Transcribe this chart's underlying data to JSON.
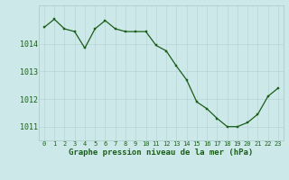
{
  "x": [
    0,
    1,
    2,
    3,
    4,
    5,
    6,
    7,
    8,
    9,
    10,
    11,
    12,
    13,
    14,
    15,
    16,
    17,
    18,
    19,
    20,
    21,
    22,
    23
  ],
  "y": [
    1014.6,
    1014.9,
    1014.55,
    1014.45,
    1013.85,
    1014.55,
    1014.85,
    1014.55,
    1014.45,
    1014.45,
    1014.45,
    1013.95,
    1013.75,
    1013.2,
    1012.7,
    1011.9,
    1011.65,
    1011.3,
    1011.0,
    1011.0,
    1011.15,
    1011.45,
    1012.1,
    1012.4
  ],
  "line_color": "#1a5e1a",
  "marker_color": "#1a5e1a",
  "bg_color": "#cce8e8",
  "grid_color": "#aac8c8",
  "xlabel": "Graphe pression niveau de la mer (hPa)",
  "xlabel_color": "#1a5e1a",
  "tick_label_color": "#1a5e1a",
  "ylim": [
    1010.5,
    1015.4
  ],
  "yticks": [
    1011,
    1012,
    1013,
    1014
  ],
  "xlim": [
    -0.5,
    23.5
  ],
  "xticks": [
    0,
    1,
    2,
    3,
    4,
    5,
    6,
    7,
    8,
    9,
    10,
    11,
    12,
    13,
    14,
    15,
    16,
    17,
    18,
    19,
    20,
    21,
    22,
    23
  ],
  "grid_line_color": "#b8d4d4"
}
